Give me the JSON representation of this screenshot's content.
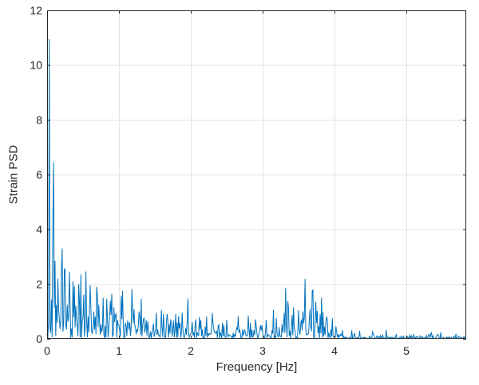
{
  "figure": {
    "background": "#ffffff"
  },
  "chart_data": {
    "type": "line",
    "title": "",
    "xlabel": "Frequency [Hz]",
    "ylabel": "Strain PSD",
    "xlim": [
      0,
      5.8333
    ],
    "ylim": [
      0,
      12
    ],
    "xticks": [
      0,
      1,
      2,
      3,
      4,
      5
    ],
    "yticks": [
      0,
      2,
      4,
      6,
      8,
      10,
      12
    ],
    "grid": true,
    "legend_position": "none",
    "line_color": "#0072BD",
    "axis_color": "#262626",
    "grid_color": "#e3e3e3",
    "tick_direction": "in",
    "box": true,
    "major_peaks": [
      [
        0.03,
        10.95
      ],
      [
        0.09,
        6.45
      ],
      [
        0.105,
        2.85
      ],
      [
        0.15,
        2.2
      ],
      [
        0.2,
        2.45
      ],
      [
        0.25,
        2.5
      ],
      [
        0.31,
        2.45
      ],
      [
        0.36,
        2.1
      ],
      [
        0.47,
        2.35
      ],
      [
        0.6,
        1.95
      ],
      [
        0.7,
        1.6
      ],
      [
        0.78,
        1.5
      ],
      [
        0.88,
        1.4
      ],
      [
        1.05,
        1.75
      ],
      [
        1.28,
        1.0
      ],
      [
        1.52,
        0.95
      ],
      [
        1.88,
        0.95
      ],
      [
        2.12,
        0.8
      ],
      [
        2.5,
        0.7
      ],
      [
        2.8,
        0.85
      ],
      [
        3.05,
        0.7
      ],
      [
        3.3,
        0.95
      ],
      [
        3.43,
        1.15
      ],
      [
        3.56,
        1.0
      ],
      [
        3.66,
        1.1
      ],
      [
        3.7,
        1.78
      ],
      [
        3.74,
        1.35
      ],
      [
        3.8,
        0.9
      ],
      [
        3.9,
        0.7
      ],
      [
        4.02,
        0.45
      ]
    ],
    "noise_envelope": [
      [
        0.0,
        0.9
      ],
      [
        0.05,
        1.8
      ],
      [
        0.1,
        2.2
      ],
      [
        0.2,
        2.4
      ],
      [
        0.35,
        2.3
      ],
      [
        0.5,
        2.0
      ],
      [
        0.65,
        1.8
      ],
      [
        0.8,
        1.5
      ],
      [
        1.0,
        1.3
      ],
      [
        1.2,
        1.0
      ],
      [
        1.5,
        0.85
      ],
      [
        1.8,
        0.8
      ],
      [
        2.1,
        0.65
      ],
      [
        2.5,
        0.6
      ],
      [
        2.9,
        0.65
      ],
      [
        3.2,
        0.75
      ],
      [
        3.45,
        0.95
      ],
      [
        3.6,
        1.1
      ],
      [
        3.72,
        1.2
      ],
      [
        3.85,
        0.8
      ],
      [
        3.98,
        0.45
      ],
      [
        4.1,
        0.18
      ],
      [
        4.5,
        0.15
      ],
      [
        5.0,
        0.14
      ],
      [
        5.5,
        0.13
      ],
      [
        5.8333,
        0.12
      ]
    ],
    "synthesis": {
      "seed": 20240601,
      "df": 0.01,
      "scale": 0.435,
      "clip_factor": 2.2
    }
  }
}
